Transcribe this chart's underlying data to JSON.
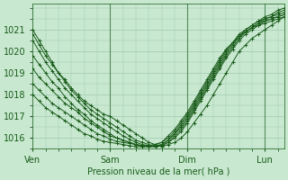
{
  "title": "",
  "xlabel": "Pression niveau de la mer( hPa )",
  "ylabel": "",
  "bg_color": "#c8e8d0",
  "grid_color": "#a0c8b0",
  "line_color": "#1a5c1a",
  "marker": "+",
  "ylim": [
    1015.5,
    1022.2
  ],
  "yticks": [
    1016,
    1017,
    1018,
    1019,
    1020,
    1021
  ],
  "day_labels": [
    "Ven",
    "Sam",
    "Dim",
    "Lun"
  ],
  "day_positions": [
    0,
    24,
    48,
    72
  ],
  "num_hours": 78,
  "series": [
    [
      1021.0,
      1020.5,
      1020.0,
      1019.5,
      1019.0,
      1018.7,
      1018.3,
      1018.0,
      1017.7,
      1017.5,
      1017.3,
      1017.1,
      1017.0,
      1016.8,
      1016.6,
      1016.4,
      1016.2,
      1016.0,
      1015.8,
      1015.7,
      1015.6,
      1015.7,
      1015.8,
      1016.0,
      1016.3,
      1016.7,
      1017.1,
      1017.5,
      1018.0,
      1018.5,
      1019.0,
      1019.5,
      1020.0,
      1020.3,
      1020.6,
      1020.8,
      1021.0,
      1021.2,
      1021.4,
      1021.6
    ],
    [
      1020.8,
      1020.3,
      1019.8,
      1019.4,
      1019.0,
      1018.6,
      1018.2,
      1017.9,
      1017.6,
      1017.3,
      1017.1,
      1016.9,
      1016.7,
      1016.5,
      1016.3,
      1016.1,
      1015.9,
      1015.8,
      1015.7,
      1015.6,
      1015.65,
      1015.8,
      1016.0,
      1016.3,
      1016.7,
      1017.2,
      1017.7,
      1018.2,
      1018.7,
      1019.2,
      1019.7,
      1020.1,
      1020.5,
      1020.8,
      1021.0,
      1021.2,
      1021.4,
      1021.5,
      1021.6,
      1021.7
    ],
    [
      1020.5,
      1020.0,
      1019.5,
      1019.1,
      1018.7,
      1018.3,
      1018.0,
      1017.7,
      1017.4,
      1017.1,
      1016.9,
      1016.7,
      1016.5,
      1016.3,
      1016.1,
      1015.95,
      1015.8,
      1015.7,
      1015.65,
      1015.6,
      1015.65,
      1015.8,
      1016.1,
      1016.4,
      1016.8,
      1017.3,
      1017.8,
      1018.3,
      1018.8,
      1019.3,
      1019.8,
      1020.2,
      1020.6,
      1020.9,
      1021.1,
      1021.3,
      1021.5,
      1021.6,
      1021.8,
      1021.9
    ],
    [
      1019.8,
      1019.4,
      1019.0,
      1018.6,
      1018.3,
      1017.9,
      1017.6,
      1017.3,
      1017.1,
      1016.8,
      1016.6,
      1016.4,
      1016.2,
      1016.0,
      1015.9,
      1015.8,
      1015.7,
      1015.65,
      1015.6,
      1015.6,
      1015.7,
      1015.9,
      1016.2,
      1016.5,
      1016.9,
      1017.4,
      1017.9,
      1018.4,
      1018.9,
      1019.4,
      1019.9,
      1020.3,
      1020.7,
      1021.0,
      1021.2,
      1021.4,
      1021.6,
      1021.7,
      1021.9,
      1022.0
    ],
    [
      1019.2,
      1018.8,
      1018.5,
      1018.2,
      1017.9,
      1017.6,
      1017.4,
      1017.2,
      1016.9,
      1016.7,
      1016.5,
      1016.3,
      1016.1,
      1016.0,
      1015.9,
      1015.8,
      1015.7,
      1015.6,
      1015.6,
      1015.65,
      1015.7,
      1015.9,
      1016.2,
      1016.6,
      1017.0,
      1017.5,
      1018.0,
      1018.5,
      1019.0,
      1019.5,
      1020.0,
      1020.4,
      1020.8,
      1021.0,
      1021.2,
      1021.4,
      1021.5,
      1021.6,
      1021.7,
      1021.8
    ],
    [
      1018.5,
      1018.2,
      1017.9,
      1017.6,
      1017.4,
      1017.2,
      1017.0,
      1016.8,
      1016.6,
      1016.4,
      1016.2,
      1016.1,
      1015.95,
      1015.85,
      1015.8,
      1015.75,
      1015.7,
      1015.65,
      1015.65,
      1015.7,
      1015.8,
      1016.0,
      1016.3,
      1016.7,
      1017.1,
      1017.6,
      1018.1,
      1018.6,
      1019.1,
      1019.6,
      1020.1,
      1020.4,
      1020.7,
      1020.9,
      1021.1,
      1021.3,
      1021.4,
      1021.5,
      1021.6,
      1021.7
    ],
    [
      1018.0,
      1017.7,
      1017.4,
      1017.2,
      1017.0,
      1016.8,
      1016.6,
      1016.4,
      1016.2,
      1016.1,
      1015.95,
      1015.85,
      1015.8,
      1015.75,
      1015.7,
      1015.65,
      1015.6,
      1015.6,
      1015.65,
      1015.7,
      1015.8,
      1016.1,
      1016.4,
      1016.8,
      1017.2,
      1017.7,
      1018.2,
      1018.7,
      1019.2,
      1019.7,
      1020.1,
      1020.4,
      1020.7,
      1020.9,
      1021.1,
      1021.2,
      1021.3,
      1021.4,
      1021.5,
      1021.6
    ]
  ]
}
